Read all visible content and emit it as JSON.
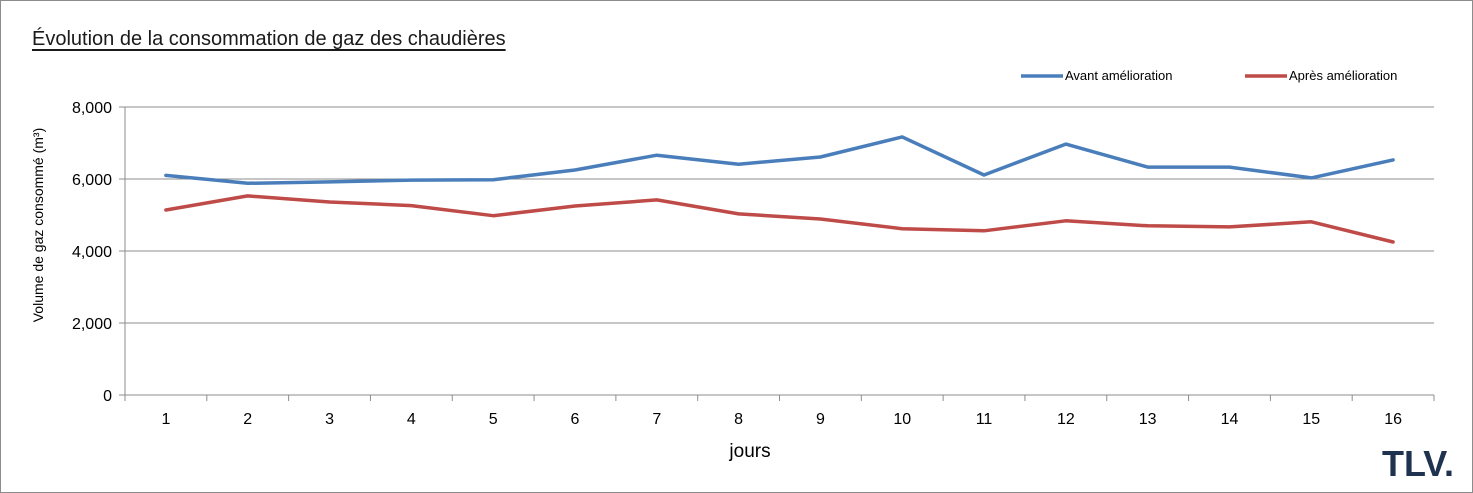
{
  "chart_data": {
    "type": "line",
    "title": "Évolution de la consommation de gaz des chaudières",
    "xlabel": "jours",
    "ylabel": "Volume de gaz consommé (m³)",
    "categories": [
      "1",
      "2",
      "3",
      "4",
      "5",
      "6",
      "7",
      "8",
      "9",
      "10",
      "11",
      "12",
      "13",
      "14",
      "15",
      "16"
    ],
    "ylim": [
      0,
      8000
    ],
    "yticks": [
      0,
      2000,
      4000,
      6000,
      8000
    ],
    "ytick_labels": [
      "0",
      "2,000",
      "4,000",
      "6,000",
      "8,000"
    ],
    "grid": true,
    "legend_position": "top-right",
    "series": [
      {
        "name": "Avant amélioration",
        "color": "#4a7ebb",
        "values": [
          6100,
          5880,
          5920,
          5970,
          5980,
          6250,
          6660,
          6410,
          6610,
          7170,
          6110,
          6970,
          6330,
          6330,
          6030,
          6530
        ]
      },
      {
        "name": "Après amélioration",
        "color": "#be4b48",
        "values": [
          5140,
          5530,
          5360,
          5260,
          4980,
          5250,
          5420,
          5030,
          4890,
          4620,
          4560,
          4840,
          4700,
          4670,
          4810,
          4250
        ]
      }
    ]
  },
  "logo": {
    "text": "TLV."
  }
}
